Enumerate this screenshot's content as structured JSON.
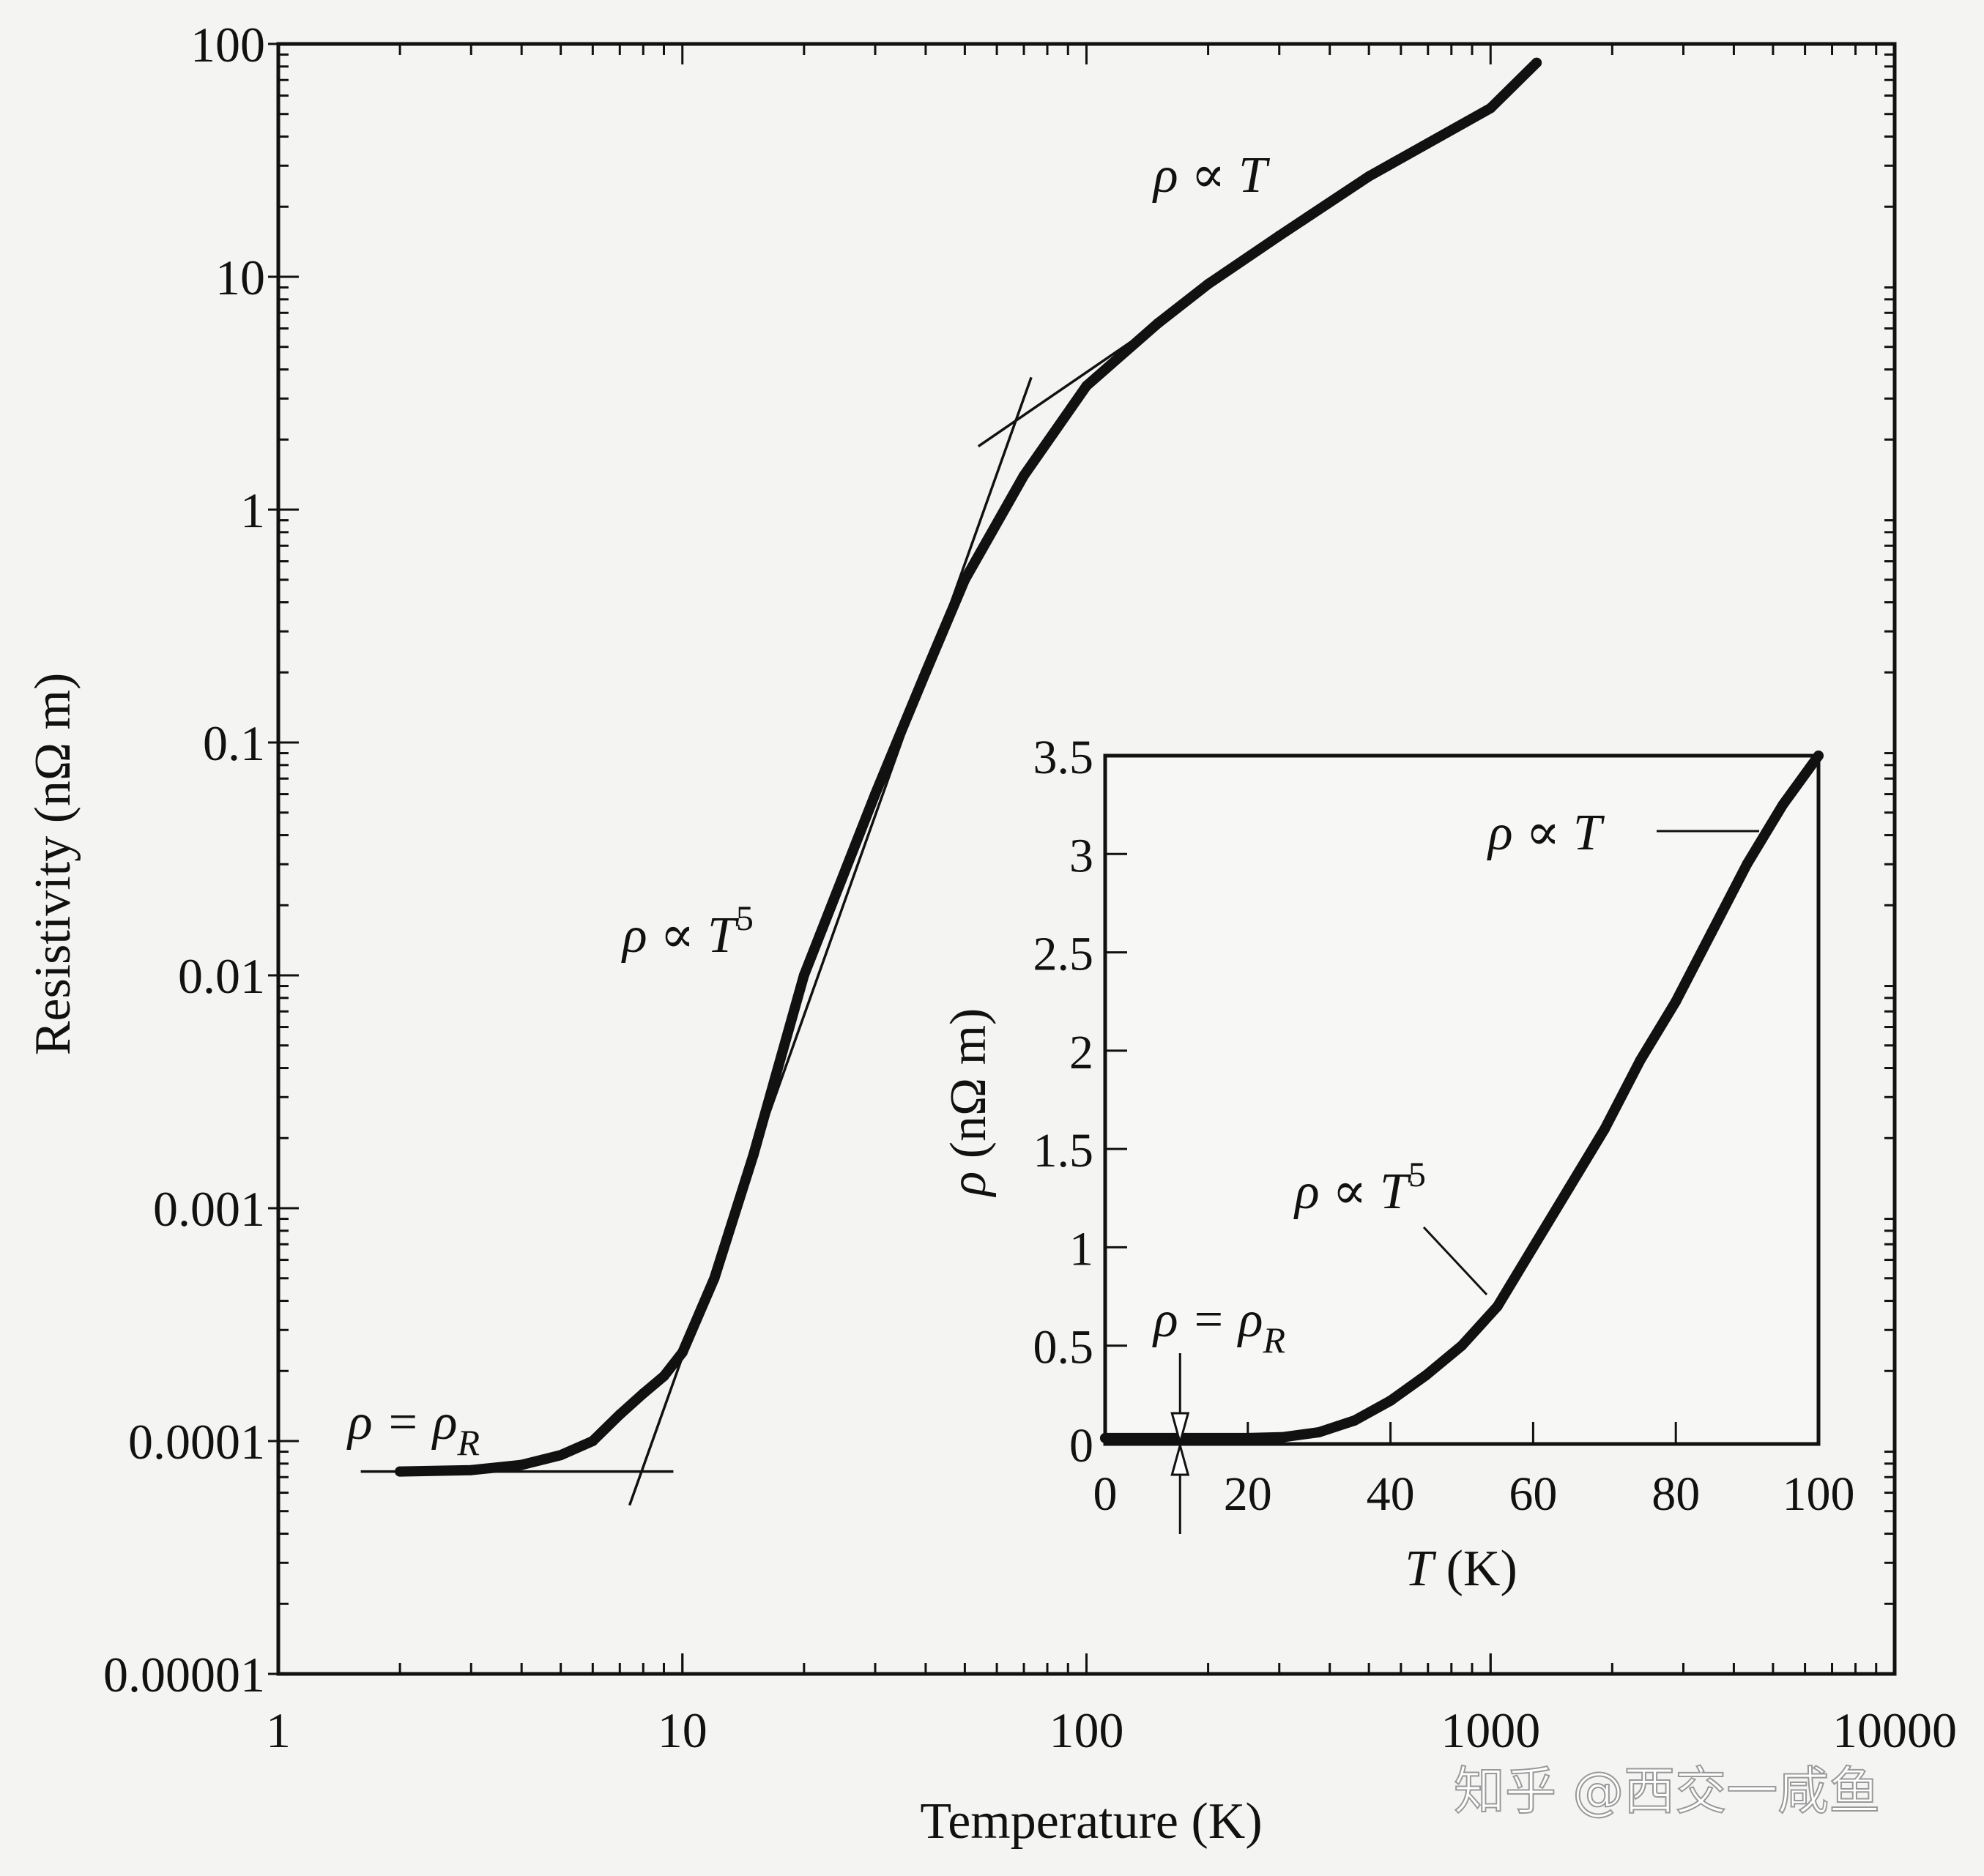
{
  "chart_data": [
    {
      "type": "line",
      "title": "",
      "xlabel": "Temperature (K)",
      "ylabel": "Resistivity (nΩ m)",
      "xscale": "log",
      "yscale": "log",
      "xlim": [
        1,
        10000
      ],
      "ylim": [
        1e-05,
        100
      ],
      "xticks": [
        "1",
        "10",
        "100",
        "1000",
        "10000"
      ],
      "yticks": [
        "0.00001",
        "0.0001",
        "0.001",
        "0.01",
        "0.1",
        "1",
        "10",
        "100"
      ],
      "grid": false,
      "series": [
        {
          "name": "measured resistivity",
          "x": [
            2,
            3,
            4,
            5,
            6,
            7,
            8,
            9,
            10,
            12,
            15,
            20,
            30,
            40,
            50,
            70,
            100,
            150,
            200,
            300,
            500,
            1000,
            1300
          ],
          "y": [
            7.4e-05,
            7.5e-05,
            7.9e-05,
            8.7e-05,
            0.0001,
            0.00013,
            0.00016,
            0.00019,
            0.00024,
            0.0005,
            0.0017,
            0.01,
            0.06,
            0.2,
            0.5,
            1.4,
            3.4,
            6.3,
            9.3,
            15,
            27,
            53,
            83
          ]
        }
      ],
      "fit_lines": [
        {
          "name": "residual",
          "x": [
            1.6,
            9.5
          ],
          "y": [
            7.4e-05,
            7.4e-05
          ]
        },
        {
          "name": "T5",
          "x": [
            7.4,
            73
          ],
          "y": [
            5.3e-05,
            3.7
          ]
        },
        {
          "name": "linear",
          "x": [
            54,
            140
          ],
          "y": [
            1.87,
            5.8
          ]
        }
      ],
      "annotations": [
        {
          "text": "ρ ∝ T",
          "sup": ""
        },
        {
          "text": "ρ ∝ T",
          "sup": "5"
        },
        {
          "text": "ρ = ρ",
          "sub": "R"
        }
      ]
    },
    {
      "type": "line",
      "title": "",
      "xlabel_italic": "T",
      "xlabel_rest": " (K)",
      "ylabel_italic": "ρ",
      "ylabel_rest": " (nΩ m)",
      "xlim": [
        0,
        100
      ],
      "ylim": [
        0,
        3.5
      ],
      "xticks": [
        "0",
        "20",
        "40",
        "60",
        "80",
        "100"
      ],
      "yticks": [
        "0",
        "0.5",
        "1",
        "1.5",
        "2",
        "2.5",
        "3",
        "3.5"
      ],
      "grid": false,
      "series": [
        {
          "name": "measured resistivity (linear)",
          "x": [
            0,
            10,
            20,
            25,
            30,
            35,
            40,
            45,
            50,
            55,
            60,
            65,
            70,
            75,
            80,
            85,
            90,
            95,
            100
          ],
          "y": [
            0.03,
            0.03,
            0.03,
            0.035,
            0.06,
            0.12,
            0.22,
            0.35,
            0.5,
            0.7,
            1.0,
            1.3,
            1.6,
            1.95,
            2.25,
            2.6,
            2.95,
            3.25,
            3.5
          ]
        }
      ],
      "residual_marker_T": 10.5,
      "annotations": [
        {
          "text": "ρ ∝ T",
          "sup": ""
        },
        {
          "text": "ρ ∝ T",
          "sup": "5"
        },
        {
          "text": "ρ = ρ",
          "sub": "R"
        }
      ]
    }
  ],
  "watermark": "知乎 @西交一咸鱼"
}
